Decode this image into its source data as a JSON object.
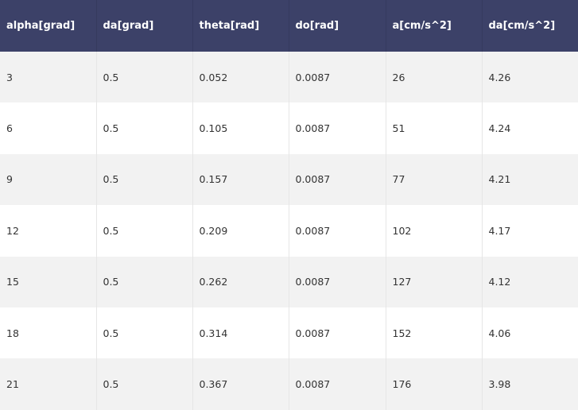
{
  "table": {
    "headers": [
      "alpha[grad]",
      "da[grad]",
      "theta[rad]",
      "do[rad]",
      "a[cm/s^2]",
      "da[cm/s^2]"
    ],
    "rows": [
      [
        "3",
        "0.5",
        "0.052",
        "0.0087",
        "26",
        "4.26"
      ],
      [
        "6",
        "0.5",
        "0.105",
        "0.0087",
        "51",
        "4.24"
      ],
      [
        "9",
        "0.5",
        "0.157",
        "0.0087",
        "77",
        "4.21"
      ],
      [
        "12",
        "0.5",
        "0.209",
        "0.0087",
        "102",
        "4.17"
      ],
      [
        "15",
        "0.5",
        "0.262",
        "0.0087",
        "127",
        "4.12"
      ],
      [
        "18",
        "0.5",
        "0.314",
        "0.0087",
        "152",
        "4.06"
      ],
      [
        "21",
        "0.5",
        "0.367",
        "0.0087",
        "176",
        "3.98"
      ]
    ]
  },
  "colors": {
    "header_background": "#3c4168",
    "header_text": "#ffffff",
    "row_odd": "#f2f2f2",
    "row_even": "#ffffff",
    "cell_text": "#333333"
  }
}
